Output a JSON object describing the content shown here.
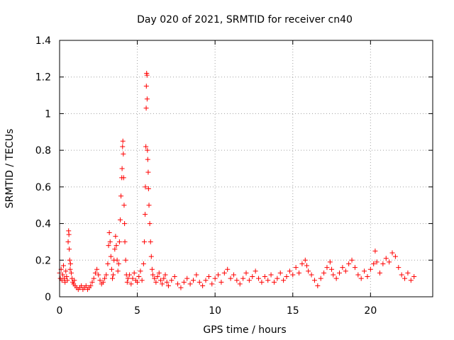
{
  "chart_data": {
    "type": "scatter",
    "title": "Day 020 of 2021, SRMTID for receiver cn40",
    "xlabel": "GPS time / hours",
    "ylabel": "SRMTID / TECUs",
    "xlim": [
      0,
      24
    ],
    "ylim": [
      0,
      1.4
    ],
    "xticks": [
      0,
      5,
      10,
      15,
      20
    ],
    "xtick_labels": [
      "0",
      "5",
      "10",
      "15",
      "20"
    ],
    "yticks": [
      0,
      0.2,
      0.4,
      0.6,
      0.8,
      1.0,
      1.2,
      1.4
    ],
    "ytick_labels": [
      "0",
      "0.2",
      "0.4",
      "0.6",
      "0.8",
      "1",
      "1.2",
      "1.4"
    ],
    "grid": true,
    "marker": "+",
    "series": [
      {
        "name": "cn40",
        "color": "#ff0000",
        "points": [
          [
            0.0,
            0.13
          ],
          [
            0.05,
            0.1
          ],
          [
            0.1,
            0.15
          ],
          [
            0.15,
            0.09
          ],
          [
            0.2,
            0.12
          ],
          [
            0.25,
            0.17
          ],
          [
            0.3,
            0.1
          ],
          [
            0.35,
            0.08
          ],
          [
            0.4,
            0.14
          ],
          [
            0.45,
            0.11
          ],
          [
            0.5,
            0.09
          ],
          [
            0.55,
            0.3
          ],
          [
            0.58,
            0.36
          ],
          [
            0.6,
            0.34
          ],
          [
            0.62,
            0.26
          ],
          [
            0.65,
            0.2
          ],
          [
            0.68,
            0.15
          ],
          [
            0.7,
            0.18
          ],
          [
            0.75,
            0.13
          ],
          [
            0.8,
            0.1
          ],
          [
            0.85,
            0.08
          ],
          [
            0.9,
            0.07
          ],
          [
            0.95,
            0.09
          ],
          [
            1.0,
            0.06
          ],
          [
            1.1,
            0.05
          ],
          [
            1.2,
            0.04
          ],
          [
            1.3,
            0.05
          ],
          [
            1.4,
            0.06
          ],
          [
            1.5,
            0.04
          ],
          [
            1.6,
            0.05
          ],
          [
            1.7,
            0.06
          ],
          [
            1.8,
            0.04
          ],
          [
            1.9,
            0.05
          ],
          [
            2.0,
            0.06
          ],
          [
            2.1,
            0.08
          ],
          [
            2.2,
            0.1
          ],
          [
            2.3,
            0.13
          ],
          [
            2.4,
            0.15
          ],
          [
            2.5,
            0.12
          ],
          [
            2.6,
            0.09
          ],
          [
            2.7,
            0.07
          ],
          [
            2.8,
            0.08
          ],
          [
            2.9,
            0.1
          ],
          [
            3.0,
            0.12
          ],
          [
            3.1,
            0.18
          ],
          [
            3.15,
            0.28
          ],
          [
            3.2,
            0.35
          ],
          [
            3.25,
            0.3
          ],
          [
            3.3,
            0.22
          ],
          [
            3.35,
            0.15
          ],
          [
            3.4,
            0.1
          ],
          [
            3.45,
            0.12
          ],
          [
            3.5,
            0.2
          ],
          [
            3.55,
            0.26
          ],
          [
            3.6,
            0.33
          ],
          [
            3.65,
            0.28
          ],
          [
            3.7,
            0.2
          ],
          [
            3.75,
            0.14
          ],
          [
            3.8,
            0.18
          ],
          [
            3.85,
            0.3
          ],
          [
            3.9,
            0.42
          ],
          [
            3.95,
            0.55
          ],
          [
            4.0,
            0.65
          ],
          [
            4.02,
            0.7
          ],
          [
            4.05,
            0.82
          ],
          [
            4.07,
            0.85
          ],
          [
            4.1,
            0.78
          ],
          [
            4.12,
            0.65
          ],
          [
            4.15,
            0.5
          ],
          [
            4.18,
            0.4
          ],
          [
            4.2,
            0.3
          ],
          [
            4.25,
            0.2
          ],
          [
            4.3,
            0.12
          ],
          [
            4.35,
            0.08
          ],
          [
            4.4,
            0.1
          ],
          [
            4.5,
            0.12
          ],
          [
            4.6,
            0.07
          ],
          [
            4.7,
            0.1
          ],
          [
            4.8,
            0.13
          ],
          [
            4.9,
            0.09
          ],
          [
            5.0,
            0.08
          ],
          [
            5.1,
            0.11
          ],
          [
            5.2,
            0.14
          ],
          [
            5.3,
            0.09
          ],
          [
            5.4,
            0.18
          ],
          [
            5.45,
            0.3
          ],
          [
            5.5,
            0.45
          ],
          [
            5.52,
            0.6
          ],
          [
            5.55,
            0.82
          ],
          [
            5.57,
            1.03
          ],
          [
            5.58,
            1.15
          ],
          [
            5.6,
            1.22
          ],
          [
            5.62,
            1.21
          ],
          [
            5.63,
            1.08
          ],
          [
            5.65,
            0.8
          ],
          [
            5.67,
            0.75
          ],
          [
            5.7,
            0.68
          ],
          [
            5.72,
            0.59
          ],
          [
            5.75,
            0.5
          ],
          [
            5.8,
            0.4
          ],
          [
            5.85,
            0.3
          ],
          [
            5.9,
            0.22
          ],
          [
            5.95,
            0.15
          ],
          [
            6.0,
            0.12
          ],
          [
            6.1,
            0.1
          ],
          [
            6.2,
            0.08
          ],
          [
            6.3,
            0.11
          ],
          [
            6.4,
            0.13
          ],
          [
            6.5,
            0.09
          ],
          [
            6.6,
            0.07
          ],
          [
            6.7,
            0.1
          ],
          [
            6.8,
            0.12
          ],
          [
            6.9,
            0.08
          ],
          [
            7.0,
            0.06
          ],
          [
            7.2,
            0.09
          ],
          [
            7.4,
            0.11
          ],
          [
            7.6,
            0.07
          ],
          [
            7.8,
            0.05
          ],
          [
            8.0,
            0.08
          ],
          [
            8.2,
            0.1
          ],
          [
            8.4,
            0.07
          ],
          [
            8.6,
            0.09
          ],
          [
            8.8,
            0.12
          ],
          [
            9.0,
            0.08
          ],
          [
            9.2,
            0.06
          ],
          [
            9.4,
            0.09
          ],
          [
            9.6,
            0.11
          ],
          [
            9.8,
            0.07
          ],
          [
            10.0,
            0.1
          ],
          [
            10.2,
            0.12
          ],
          [
            10.4,
            0.08
          ],
          [
            10.6,
            0.13
          ],
          [
            10.8,
            0.15
          ],
          [
            11.0,
            0.1
          ],
          [
            11.2,
            0.12
          ],
          [
            11.4,
            0.09
          ],
          [
            11.6,
            0.07
          ],
          [
            11.8,
            0.1
          ],
          [
            12.0,
            0.13
          ],
          [
            12.2,
            0.09
          ],
          [
            12.4,
            0.11
          ],
          [
            12.6,
            0.14
          ],
          [
            12.8,
            0.1
          ],
          [
            13.0,
            0.08
          ],
          [
            13.2,
            0.11
          ],
          [
            13.4,
            0.09
          ],
          [
            13.6,
            0.12
          ],
          [
            13.8,
            0.08
          ],
          [
            14.0,
            0.1
          ],
          [
            14.2,
            0.13
          ],
          [
            14.4,
            0.09
          ],
          [
            14.6,
            0.11
          ],
          [
            14.8,
            0.14
          ],
          [
            15.0,
            0.12
          ],
          [
            15.2,
            0.16
          ],
          [
            15.4,
            0.13
          ],
          [
            15.6,
            0.18
          ],
          [
            15.8,
            0.2
          ],
          [
            15.9,
            0.17
          ],
          [
            16.0,
            0.14
          ],
          [
            16.2,
            0.12
          ],
          [
            16.4,
            0.09
          ],
          [
            16.6,
            0.06
          ],
          [
            16.8,
            0.1
          ],
          [
            17.0,
            0.13
          ],
          [
            17.2,
            0.16
          ],
          [
            17.4,
            0.19
          ],
          [
            17.5,
            0.15
          ],
          [
            17.6,
            0.12
          ],
          [
            17.8,
            0.1
          ],
          [
            18.0,
            0.13
          ],
          [
            18.2,
            0.16
          ],
          [
            18.4,
            0.14
          ],
          [
            18.6,
            0.18
          ],
          [
            18.8,
            0.2
          ],
          [
            19.0,
            0.16
          ],
          [
            19.2,
            0.12
          ],
          [
            19.4,
            0.1
          ],
          [
            19.6,
            0.14
          ],
          [
            19.8,
            0.11
          ],
          [
            20.0,
            0.15
          ],
          [
            20.2,
            0.18
          ],
          [
            20.3,
            0.25
          ],
          [
            20.4,
            0.19
          ],
          [
            20.6,
            0.13
          ],
          [
            20.8,
            0.18
          ],
          [
            21.0,
            0.21
          ],
          [
            21.2,
            0.19
          ],
          [
            21.4,
            0.24
          ],
          [
            21.6,
            0.22
          ],
          [
            21.8,
            0.16
          ],
          [
            22.0,
            0.12
          ],
          [
            22.2,
            0.1
          ],
          [
            22.4,
            0.13
          ],
          [
            22.6,
            0.09
          ],
          [
            22.8,
            0.11
          ]
        ]
      }
    ]
  }
}
